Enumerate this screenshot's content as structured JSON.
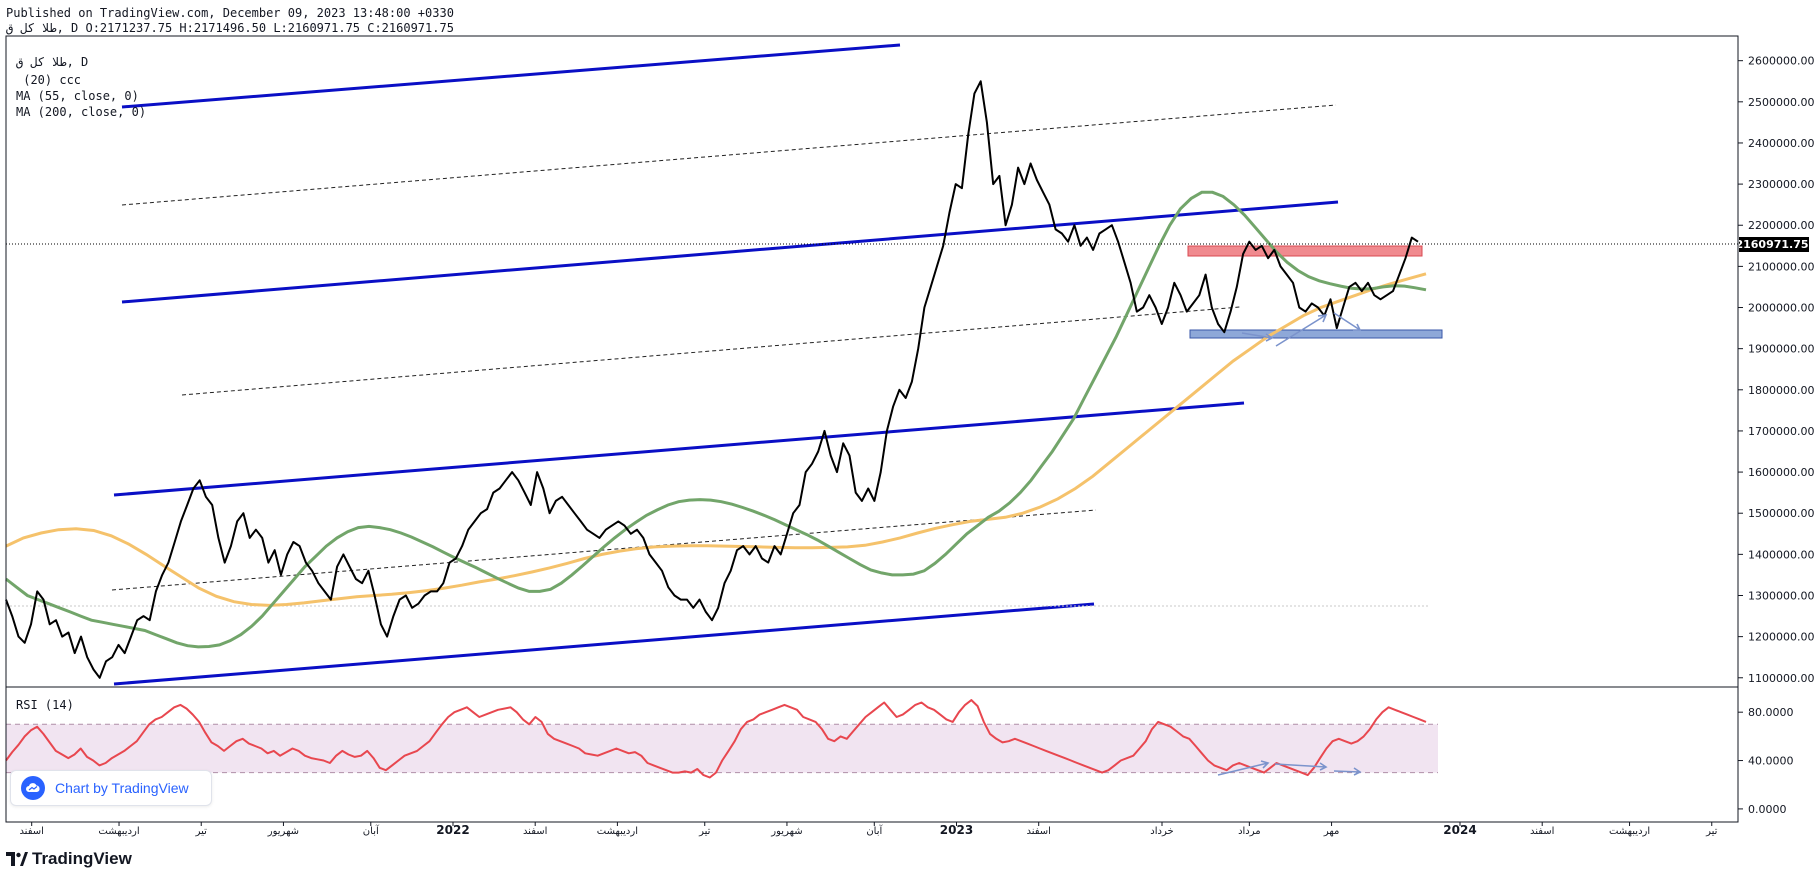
{
  "header": {
    "published": "Published on TradingView.com, December 09, 2023 13:48:00 +0330",
    "ohlc": "طلا کل ق, D O:2171237.75 H:2171496.50 L:2160971.75 C:2160971.75"
  },
  "legend": {
    "symbol": "طلا کل ق, D",
    "ma20": " (20) ccc",
    "ma55": "MA (55, close, 0)",
    "ma200": "MA (200, close, 0)",
    "rsi": "RSI (14)"
  },
  "badge": {
    "label": "Chart by TradingView"
  },
  "footer": {
    "brand": "TradingView"
  },
  "colors": {
    "price": "#000000",
    "ma55": "#72a56a",
    "ma200": "#f5c26b",
    "rsi": "#e8474f",
    "channel": "#0a0fc5",
    "rsi_band": "#f1e4f1",
    "demand_zone": "#8ea8d8",
    "supply_zone": "#f08a8f",
    "arrows": "#7b93cc"
  },
  "chart_data": [
    {
      "type": "line",
      "title": "",
      "ylim": [
        1080000,
        2660000
      ],
      "last_price_label": "2160971.75",
      "y_ticks": [
        "1100000.00",
        "1200000.00",
        "1300000.00",
        "1400000.00",
        "1500000.00",
        "1600000.00",
        "1700000.00",
        "1800000.00",
        "1900000.00",
        "2000000.00",
        "2100000.00",
        "2200000.00",
        "2300000.00",
        "2400000.00",
        "2500000.00",
        "2600000.00"
      ],
      "x_ticks": [
        {
          "label": "اسفند",
          "i": 5
        },
        {
          "label": "اردیبهشت",
          "i": 22
        },
        {
          "label": "تیر",
          "i": 38
        },
        {
          "label": "شهریور",
          "i": 54
        },
        {
          "label": "آبان",
          "i": 71
        },
        {
          "label": "2022",
          "i": 87
        },
        {
          "label": "اسفند",
          "i": 103
        },
        {
          "label": "اردیبهشت",
          "i": 119
        },
        {
          "label": "تیر",
          "i": 136
        },
        {
          "label": "شهریور",
          "i": 152
        },
        {
          "label": "آبان",
          "i": 169
        },
        {
          "label": "2023",
          "i": 185
        },
        {
          "label": "اسفند",
          "i": 201
        },
        {
          "label": "خرداد",
          "i": 225
        },
        {
          "label": "مرداد",
          "i": 242
        },
        {
          "label": "مهر",
          "i": 258
        },
        {
          "label": "2024",
          "i": 283
        },
        {
          "label": "اسفند",
          "i": 299
        },
        {
          "label": "اردیبهشت",
          "i": 316
        },
        {
          "label": "تیر",
          "i": 332
        }
      ],
      "series": [
        {
          "values": [
            1290000,
            1250000,
            1200000,
            1185000,
            1230000,
            1310000,
            1290000,
            1230000,
            1240000,
            1200000,
            1210000,
            1160000,
            1200000,
            1150000,
            1120000,
            1100000,
            1140000,
            1150000,
            1180000,
            1160000,
            1200000,
            1240000,
            1250000,
            1240000,
            1310000,
            1350000,
            1380000,
            1430000,
            1480000,
            1520000,
            1560000,
            1580000,
            1540000,
            1520000,
            1440000,
            1380000,
            1420000,
            1480000,
            1500000,
            1440000,
            1460000,
            1440000,
            1380000,
            1410000,
            1350000,
            1400000,
            1430000,
            1420000,
            1380000,
            1360000,
            1330000,
            1310000,
            1290000,
            1370000,
            1400000,
            1370000,
            1340000,
            1330000,
            1360000,
            1300000,
            1230000,
            1200000,
            1250000,
            1290000,
            1300000,
            1270000,
            1280000,
            1300000,
            1310000,
            1310000,
            1330000,
            1380000,
            1390000,
            1420000,
            1460000,
            1480000,
            1500000,
            1510000,
            1550000,
            1560000,
            1580000,
            1600000,
            1580000,
            1550000,
            1520000,
            1600000,
            1560000,
            1500000,
            1530000,
            1540000,
            1520000,
            1500000,
            1480000,
            1460000,
            1450000,
            1440000,
            1460000,
            1470000,
            1480000,
            1470000,
            1450000,
            1460000,
            1440000,
            1400000,
            1380000,
            1360000,
            1320000,
            1300000,
            1290000,
            1290000,
            1270000,
            1290000,
            1260000,
            1240000,
            1270000,
            1330000,
            1360000,
            1410000,
            1420000,
            1400000,
            1420000,
            1390000,
            1380000,
            1420000,
            1400000,
            1450000,
            1500000,
            1520000,
            1600000,
            1620000,
            1650000,
            1700000,
            1640000,
            1600000,
            1670000,
            1640000,
            1550000,
            1530000,
            1560000,
            1530000,
            1600000,
            1700000,
            1760000,
            1800000,
            1780000,
            1820000,
            1900000,
            2000000,
            2050000,
            2100000,
            2150000,
            2230000,
            2300000,
            2290000,
            2420000,
            2520000,
            2550000,
            2450000,
            2300000,
            2320000,
            2200000,
            2250000,
            2340000,
            2300000,
            2350000,
            2310000,
            2280000,
            2250000,
            2190000,
            2180000,
            2160000,
            2200000,
            2150000,
            2170000,
            2140000,
            2180000,
            2190000,
            2200000,
            2160000,
            2110000,
            2060000,
            1990000,
            2000000,
            2030000,
            2000000,
            1960000,
            2000000,
            2060000,
            2030000,
            1990000,
            2010000,
            2030000,
            2080000,
            2000000,
            1960000,
            1940000,
            1990000,
            2050000,
            2130000,
            2160000,
            2140000,
            2150000,
            2120000,
            2140000,
            2100000,
            2080000,
            2060000,
            2000000,
            1990000,
            2010000,
            2000000,
            1980000,
            2020000,
            1950000,
            2000000,
            2050000,
            2060000,
            2040000,
            2060000,
            2030000,
            2020000,
            2030000,
            2040000,
            2080000,
            2120000,
            2170000,
            2160000
          ]
        },
        {
          "values": [
            1340000,
            1320000,
            1300000,
            1290000,
            1280000,
            1270000,
            1260000,
            1250000,
            1240000,
            1235000,
            1230000,
            1225000,
            1220000,
            1215000,
            1205000,
            1195000,
            1185000,
            1178000,
            1175000,
            1176000,
            1180000,
            1190000,
            1205000,
            1225000,
            1250000,
            1280000,
            1310000,
            1340000,
            1370000,
            1395000,
            1420000,
            1440000,
            1455000,
            1465000,
            1468000,
            1465000,
            1460000,
            1452000,
            1442000,
            1430000,
            1418000,
            1405000,
            1392000,
            1380000,
            1368000,
            1355000,
            1342000,
            1330000,
            1318000,
            1310000,
            1310000,
            1315000,
            1330000,
            1350000,
            1372000,
            1395000,
            1418000,
            1440000,
            1460000,
            1478000,
            1495000,
            1508000,
            1520000,
            1528000,
            1532000,
            1533000,
            1532000,
            1528000,
            1522000,
            1514000,
            1505000,
            1495000,
            1484000,
            1472000,
            1460000,
            1448000,
            1435000,
            1420000,
            1405000,
            1390000,
            1375000,
            1362000,
            1355000,
            1350000,
            1350000,
            1352000,
            1360000,
            1378000,
            1400000,
            1425000,
            1450000,
            1470000,
            1490000,
            1505000,
            1525000,
            1550000,
            1580000,
            1615000,
            1650000,
            1690000,
            1730000,
            1780000,
            1830000,
            1880000,
            1930000,
            1985000,
            2040000,
            2095000,
            2150000,
            2200000,
            2240000,
            2265000,
            2280000,
            2280000,
            2270000,
            2250000,
            2225000,
            2195000,
            2165000,
            2135000,
            2110000,
            2090000,
            2075000,
            2065000,
            2058000,
            2052000,
            2047000,
            2045000,
            2046000,
            2050000,
            2053000,
            2052000,
            2048000,
            2043000
          ]
        },
        {
          "values": [
            1420000,
            1440000,
            1452000,
            1460000,
            1462000,
            1458000,
            1445000,
            1425000,
            1400000,
            1372000,
            1345000,
            1318000,
            1298000,
            1285000,
            1278000,
            1276000,
            1278000,
            1282000,
            1287000,
            1292000,
            1297000,
            1300000,
            1303000,
            1307000,
            1312000,
            1318000,
            1325000,
            1333000,
            1340000,
            1348000,
            1357000,
            1367000,
            1378000,
            1390000,
            1400000,
            1408000,
            1414000,
            1418000,
            1420000,
            1421000,
            1421000,
            1420000,
            1419000,
            1418000,
            1417000,
            1416000,
            1416000,
            1417000,
            1418000,
            1422000,
            1430000,
            1440000,
            1452000,
            1463000,
            1472000,
            1480000,
            1485000,
            1490000,
            1500000,
            1515000,
            1535000,
            1560000,
            1590000,
            1625000,
            1660000,
            1695000,
            1730000,
            1765000,
            1800000,
            1835000,
            1870000,
            1900000,
            1930000,
            1955000,
            1980000,
            2000000,
            2015000,
            2030000,
            2045000,
            2058000,
            2070000,
            2082000
          ]
        },
        {
          "values": [
            40,
            47,
            53,
            60,
            65,
            68,
            62,
            55,
            48,
            45,
            42,
            45,
            50,
            43,
            40,
            36,
            38,
            42,
            45,
            48,
            52,
            56,
            63,
            70,
            74,
            76,
            80,
            84,
            86,
            83,
            78,
            72,
            63,
            55,
            52,
            48,
            52,
            56,
            58,
            54,
            52,
            50,
            46,
            48,
            44,
            47,
            50,
            48,
            44,
            42,
            41,
            40,
            38,
            44,
            48,
            45,
            43,
            44,
            48,
            42,
            34,
            32,
            36,
            40,
            44,
            46,
            48,
            52,
            56,
            63,
            70,
            76,
            80,
            82,
            84,
            80,
            76,
            78,
            80,
            82,
            83,
            84,
            80,
            74,
            70,
            76,
            72,
            62,
            58,
            56,
            54,
            52,
            50,
            46,
            45,
            44,
            46,
            48,
            50,
            48,
            46,
            47,
            44,
            38,
            36,
            34,
            32,
            30,
            30,
            31,
            30,
            33,
            28,
            26,
            30,
            40,
            48,
            56,
            66,
            72,
            74,
            78,
            80,
            82,
            84,
            86,
            84,
            82,
            76,
            74,
            72,
            66,
            58,
            56,
            60,
            58,
            64,
            70,
            76,
            80,
            84,
            88,
            82,
            76,
            78,
            82,
            86,
            88,
            84,
            82,
            78,
            74,
            72,
            80,
            86,
            90,
            85,
            72,
            62,
            58,
            55,
            56,
            58,
            56,
            54,
            52,
            50,
            48,
            46,
            44,
            42,
            40,
            38,
            36,
            34,
            32,
            30,
            32,
            36,
            40,
            42,
            44,
            50,
            56,
            66,
            72,
            70,
            68,
            64,
            60,
            58,
            52,
            46,
            40,
            36,
            34,
            32,
            36,
            38,
            36,
            34,
            32,
            30,
            34,
            38,
            36,
            34,
            32,
            30,
            28,
            34,
            42,
            50,
            56,
            58,
            56,
            54,
            56,
            60,
            66,
            74,
            80,
            84,
            82,
            80,
            78,
            76,
            74,
            72
          ]
        }
      ]
    },
    {
      "type": "line",
      "title": "RSI (14)",
      "ylim": [
        -10,
        100
      ],
      "y_ticks": [
        "80.0000",
        "40.0000",
        "0.0000"
      ],
      "bands": [
        30,
        70
      ]
    }
  ]
}
